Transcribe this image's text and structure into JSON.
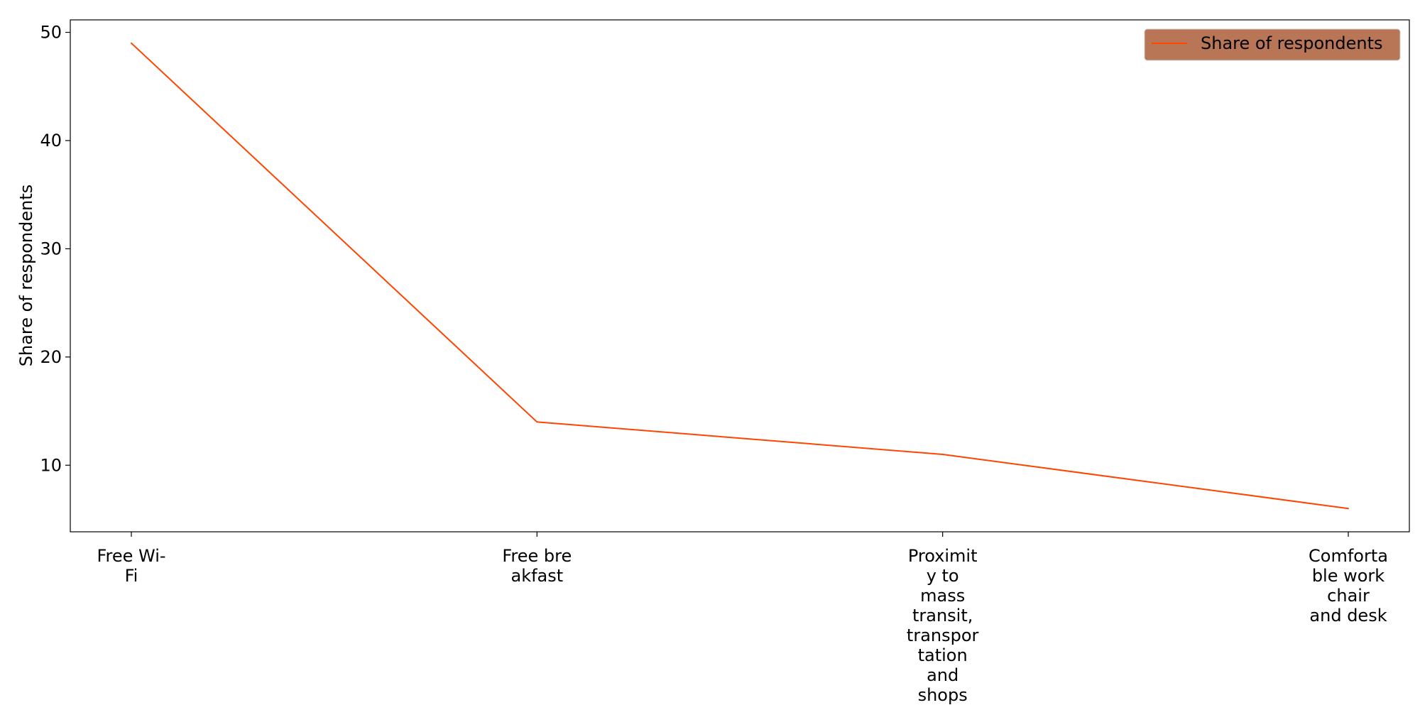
{
  "chart_data": {
    "type": "line",
    "title": "",
    "xlabel": "",
    "ylabel": "Share of respondents",
    "categories": [
      "Free Wi-Fi",
      "Free breakfast",
      "Proximity to mass transit, transportation and shops",
      "Comfortable work chair and desk"
    ],
    "category_label_lines": [
      [
        "Free Wi-",
        "Fi"
      ],
      [
        "Free bre",
        "akfast"
      ],
      [
        "Proximit",
        "y to",
        "mass",
        "transit,",
        "transpor",
        "tation",
        "and",
        "shops"
      ],
      [
        "Comforta",
        "ble work",
        "chair",
        "and desk"
      ]
    ],
    "series": [
      {
        "name": "Share of respondents",
        "values": [
          49,
          14,
          11,
          6
        ],
        "color": "#ff4500"
      }
    ],
    "ylim": [
      3.85,
      51.15
    ],
    "yticks": [
      10,
      20,
      30,
      40,
      50
    ],
    "grid": false,
    "legend": {
      "position": "top-right",
      "background": "#b87656"
    }
  }
}
